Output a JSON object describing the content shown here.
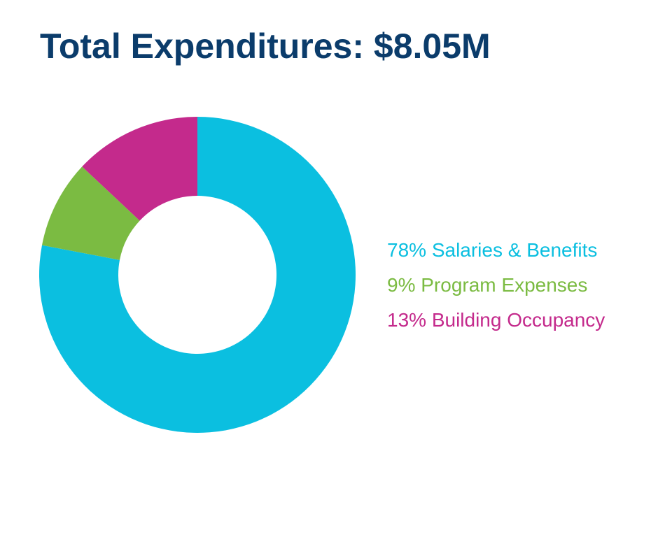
{
  "chart_data": {
    "type": "pie",
    "title": "Total Expenditures: $8.05M",
    "style": "donut",
    "categories": [
      "Salaries & Benefits",
      "Program Expenses",
      "Building Occupancy"
    ],
    "values": [
      78,
      9,
      13
    ],
    "unit": "%",
    "colors": [
      "#0bbfe0",
      "#7bbb42",
      "#c42a8c"
    ],
    "legend_position": "right",
    "legend_labels": [
      "78% Salaries & Benefits",
      "9% Program Expenses",
      "13% Building Occupancy"
    ]
  }
}
